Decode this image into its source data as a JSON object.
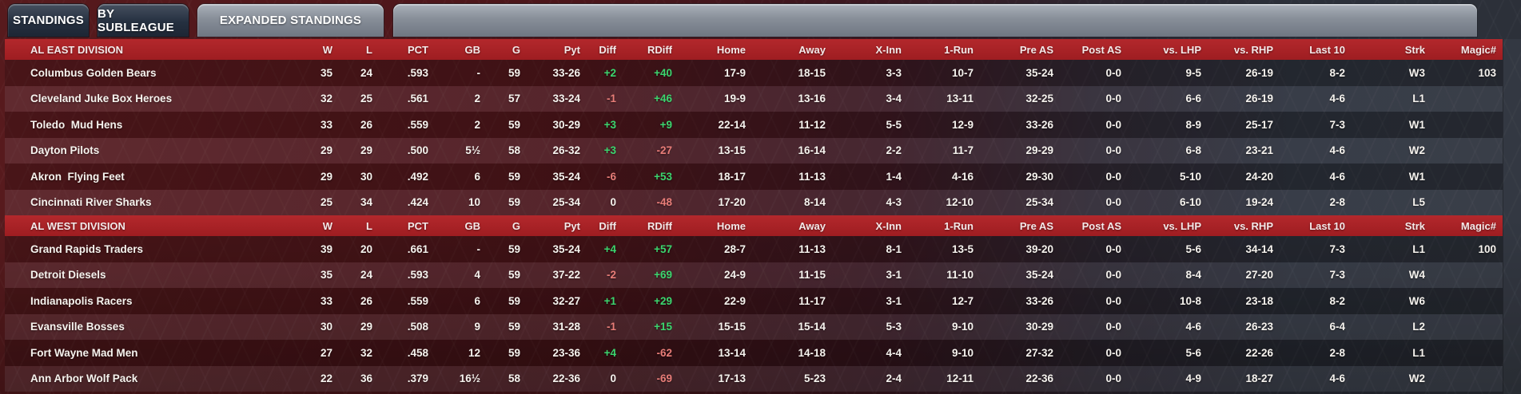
{
  "tabs": [
    {
      "label": "STANDINGS",
      "active": false
    },
    {
      "label": "BY SUBLEAGUE",
      "active": false
    },
    {
      "label": "EXPANDED STANDINGS",
      "active": true
    }
  ],
  "columns": [
    "W",
    "L",
    "PCT",
    "GB",
    "G",
    "Pyt",
    "Diff",
    "RDiff",
    "Home",
    "Away",
    "X-Inn",
    "1-Run",
    "Pre AS",
    "Post AS",
    "vs. LHP",
    "vs. RHP",
    "Last 10",
    "Strk",
    "Magic#"
  ],
  "colors": {
    "division_bar": "#a92125",
    "positive_text": "#3bd56e",
    "negative_text": "#e87d78",
    "tab_active": "#8d949e",
    "tab_inactive": "#2b3545"
  },
  "divisions": [
    {
      "name": "AL EAST DIVISION",
      "teams": [
        {
          "name": "Columbus Golden Bears",
          "w": "35",
          "l": "24",
          "pct": ".593",
          "gb": "-",
          "g": "59",
          "pyt": "33-26",
          "diff": "+2",
          "rdiff": "+40",
          "home": "17-9",
          "away": "18-15",
          "xinn": "3-3",
          "onerun": "10-7",
          "preas": "35-24",
          "postas": "0-0",
          "vslhp": "9-5",
          "vsrhp": "26-19",
          "last10": "8-2",
          "strk": "W3",
          "magic": "103"
        },
        {
          "name": "Cleveland Juke Box Heroes",
          "w": "32",
          "l": "25",
          "pct": ".561",
          "gb": "2",
          "g": "57",
          "pyt": "33-24",
          "diff": "-1",
          "rdiff": "+46",
          "home": "19-9",
          "away": "13-16",
          "xinn": "3-4",
          "onerun": "13-11",
          "preas": "32-25",
          "postas": "0-0",
          "vslhp": "6-6",
          "vsrhp": "26-19",
          "last10": "4-6",
          "strk": "L1",
          "magic": ""
        },
        {
          "name": "Toledo  Mud Hens",
          "w": "33",
          "l": "26",
          "pct": ".559",
          "gb": "2",
          "g": "59",
          "pyt": "30-29",
          "diff": "+3",
          "rdiff": "+9",
          "home": "22-14",
          "away": "11-12",
          "xinn": "5-5",
          "onerun": "12-9",
          "preas": "33-26",
          "postas": "0-0",
          "vslhp": "8-9",
          "vsrhp": "25-17",
          "last10": "7-3",
          "strk": "W1",
          "magic": ""
        },
        {
          "name": "Dayton Pilots",
          "w": "29",
          "l": "29",
          "pct": ".500",
          "gb": "5½",
          "g": "58",
          "pyt": "26-32",
          "diff": "+3",
          "rdiff": "-27",
          "home": "13-15",
          "away": "16-14",
          "xinn": "2-2",
          "onerun": "11-7",
          "preas": "29-29",
          "postas": "0-0",
          "vslhp": "6-8",
          "vsrhp": "23-21",
          "last10": "4-6",
          "strk": "W2",
          "magic": ""
        },
        {
          "name": "Akron  Flying Feet",
          "w": "29",
          "l": "30",
          "pct": ".492",
          "gb": "6",
          "g": "59",
          "pyt": "35-24",
          "diff": "-6",
          "rdiff": "+53",
          "home": "18-17",
          "away": "11-13",
          "xinn": "1-4",
          "onerun": "4-16",
          "preas": "29-30",
          "postas": "0-0",
          "vslhp": "5-10",
          "vsrhp": "24-20",
          "last10": "4-6",
          "strk": "W1",
          "magic": ""
        },
        {
          "name": "Cincinnati River Sharks",
          "w": "25",
          "l": "34",
          "pct": ".424",
          "gb": "10",
          "g": "59",
          "pyt": "25-34",
          "diff": "0",
          "rdiff": "-48",
          "home": "17-20",
          "away": "8-14",
          "xinn": "4-3",
          "onerun": "12-10",
          "preas": "25-34",
          "postas": "0-0",
          "vslhp": "6-10",
          "vsrhp": "19-24",
          "last10": "2-8",
          "strk": "L5",
          "magic": ""
        }
      ]
    },
    {
      "name": "AL WEST DIVISION",
      "teams": [
        {
          "name": "Grand Rapids Traders",
          "w": "39",
          "l": "20",
          "pct": ".661",
          "gb": "-",
          "g": "59",
          "pyt": "35-24",
          "diff": "+4",
          "rdiff": "+57",
          "home": "28-7",
          "away": "11-13",
          "xinn": "8-1",
          "onerun": "13-5",
          "preas": "39-20",
          "postas": "0-0",
          "vslhp": "5-6",
          "vsrhp": "34-14",
          "last10": "7-3",
          "strk": "L1",
          "magic": "100"
        },
        {
          "name": "Detroit Diesels",
          "w": "35",
          "l": "24",
          "pct": ".593",
          "gb": "4",
          "g": "59",
          "pyt": "37-22",
          "diff": "-2",
          "rdiff": "+69",
          "home": "24-9",
          "away": "11-15",
          "xinn": "3-1",
          "onerun": "11-10",
          "preas": "35-24",
          "postas": "0-0",
          "vslhp": "8-4",
          "vsrhp": "27-20",
          "last10": "7-3",
          "strk": "W4",
          "magic": ""
        },
        {
          "name": "Indianapolis Racers",
          "w": "33",
          "l": "26",
          "pct": ".559",
          "gb": "6",
          "g": "59",
          "pyt": "32-27",
          "diff": "+1",
          "rdiff": "+29",
          "home": "22-9",
          "away": "11-17",
          "xinn": "3-1",
          "onerun": "12-7",
          "preas": "33-26",
          "postas": "0-0",
          "vslhp": "10-8",
          "vsrhp": "23-18",
          "last10": "8-2",
          "strk": "W6",
          "magic": ""
        },
        {
          "name": "Evansville Bosses",
          "w": "30",
          "l": "29",
          "pct": ".508",
          "gb": "9",
          "g": "59",
          "pyt": "31-28",
          "diff": "-1",
          "rdiff": "+15",
          "home": "15-15",
          "away": "15-14",
          "xinn": "5-3",
          "onerun": "9-10",
          "preas": "30-29",
          "postas": "0-0",
          "vslhp": "4-6",
          "vsrhp": "26-23",
          "last10": "6-4",
          "strk": "L2",
          "magic": ""
        },
        {
          "name": "Fort Wayne Mad Men",
          "w": "27",
          "l": "32",
          "pct": ".458",
          "gb": "12",
          "g": "59",
          "pyt": "23-36",
          "diff": "+4",
          "rdiff": "-62",
          "home": "13-14",
          "away": "14-18",
          "xinn": "4-4",
          "onerun": "9-10",
          "preas": "27-32",
          "postas": "0-0",
          "vslhp": "5-6",
          "vsrhp": "22-26",
          "last10": "2-8",
          "strk": "L1",
          "magic": ""
        },
        {
          "name": "Ann Arbor Wolf Pack",
          "w": "22",
          "l": "36",
          "pct": ".379",
          "gb": "16½",
          "g": "58",
          "pyt": "22-36",
          "diff": "0",
          "rdiff": "-69",
          "home": "17-13",
          "away": "5-23",
          "xinn": "2-4",
          "onerun": "12-11",
          "preas": "22-36",
          "postas": "0-0",
          "vslhp": "4-9",
          "vsrhp": "18-27",
          "last10": "4-6",
          "strk": "W2",
          "magic": ""
        }
      ]
    }
  ]
}
